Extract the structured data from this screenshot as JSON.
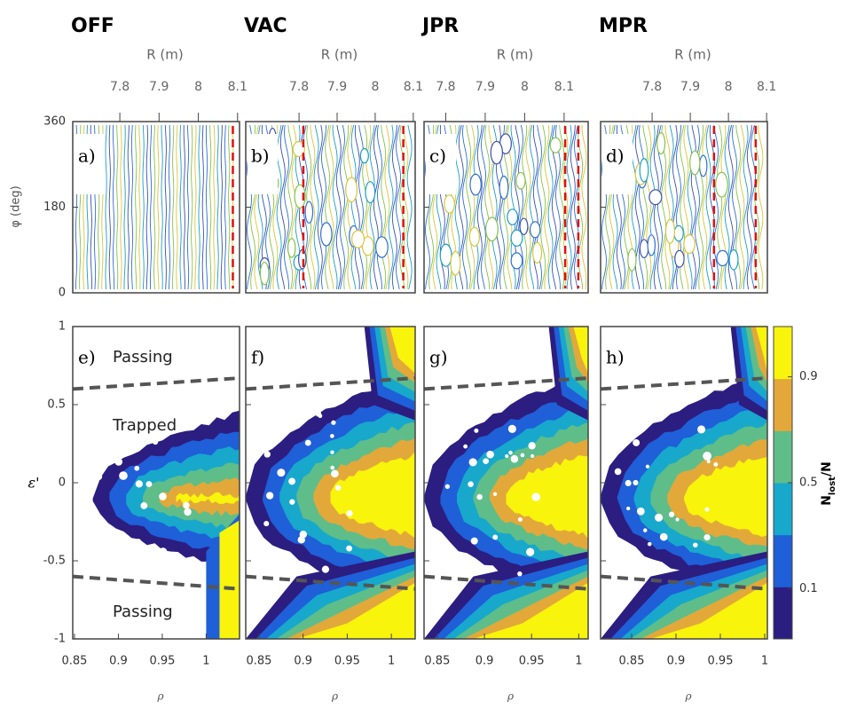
{
  "columns": [
    {
      "title": "OFF",
      "top_label": "a)",
      "bottom_label": "e)",
      "rlim": [
        7.68,
        8.105
      ],
      "rholim": [
        0.848,
        1.038
      ]
    },
    {
      "title": "VAC",
      "top_label": "b)",
      "bottom_label": "f)",
      "rlim": [
        7.66,
        8.105
      ],
      "rholim": [
        0.835,
        1.027
      ]
    },
    {
      "title": "JPR",
      "top_label": "c)",
      "bottom_label": "g)",
      "rlim": [
        7.745,
        8.161
      ],
      "rholim": [
        0.836,
        1.01
      ]
    },
    {
      "title": "MPR",
      "top_label": "d)",
      "bottom_label": "h)",
      "rlim": [
        7.665,
        8.102
      ],
      "rholim": [
        0.815,
        1.003
      ]
    }
  ],
  "r_axis": {
    "label": "R (m)",
    "ticks": [
      7.8,
      7.9,
      8,
      8.1
    ]
  },
  "phi_axis": {
    "label": "φ (deg)",
    "lim": [
      0,
      360
    ],
    "ticks": [
      0,
      180,
      360
    ]
  },
  "eps_axis": {
    "label": "ε'",
    "lim": [
      -1,
      1
    ],
    "ticks": [
      -1,
      -0.5,
      0,
      0.5,
      1
    ]
  },
  "rho_axis": {
    "label": "ρ",
    "ticks": [
      0.85,
      0.9,
      0.95,
      1
    ]
  },
  "annotations": {
    "passing_top": "Passing",
    "trapped": "Trapped",
    "passing_bottom": "Passing"
  },
  "colorbar": {
    "label_parts": [
      "N",
      "lost",
      "/N"
    ],
    "lim": [
      -0.09,
      1.09
    ],
    "ticks": [
      0.1,
      0.5,
      0.9
    ],
    "colors": [
      "#2c1d80",
      "#1f5fd8",
      "#17a8cc",
      "#5fbd8a",
      "#e3a83a",
      "#f8f40c"
    ]
  }
}
